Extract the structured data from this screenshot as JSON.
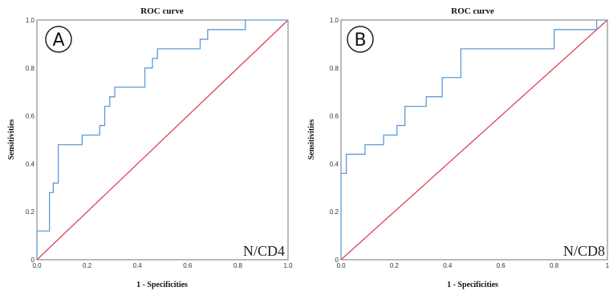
{
  "chart_data": [
    {
      "type": "line",
      "panel_letter": "A",
      "title": "ROC curve",
      "xlabel": "1 - Specificities",
      "ylabel": "Sensitivities",
      "corner_label": "N/CD4",
      "xlim": [
        0,
        1
      ],
      "ylim": [
        0,
        1
      ],
      "xticks": [
        "0.0",
        "0.2",
        "0.4",
        "0.6",
        "0.8",
        "1.0"
      ],
      "yticks": [
        "0",
        "0.2",
        "0.4",
        "0.6",
        "0.8",
        "1.0"
      ],
      "grid": false,
      "colors": {
        "roc": "#5b9bd5",
        "reference": "#e0405a"
      },
      "series": [
        {
          "x": [
            0,
            0,
            0.05,
            0.05,
            0.065,
            0.065,
            0.085,
            0.085,
            0.18,
            0.18,
            0.25,
            0.25,
            0.27,
            0.27,
            0.29,
            0.29,
            0.31,
            0.31,
            0.43,
            0.43,
            0.46,
            0.46,
            0.48,
            0.48,
            0.65,
            0.65,
            0.68,
            0.68,
            0.83,
            0.83,
            1.0
          ],
          "y": [
            0,
            0.12,
            0.12,
            0.28,
            0.28,
            0.32,
            0.32,
            0.48,
            0.48,
            0.52,
            0.52,
            0.56,
            0.56,
            0.64,
            0.64,
            0.68,
            0.68,
            0.72,
            0.72,
            0.8,
            0.8,
            0.84,
            0.84,
            0.88,
            0.88,
            0.92,
            0.92,
            0.96,
            0.96,
            1.0,
            1.0
          ]
        },
        {
          "x": [
            0,
            1
          ],
          "y": [
            0,
            1
          ]
        }
      ]
    },
    {
      "type": "line",
      "panel_letter": "B",
      "title": "ROC curve",
      "xlabel": "1 - Specificities",
      "ylabel": "Sensitivities",
      "corner_label": "N/CD8",
      "xlim": [
        0,
        1
      ],
      "ylim": [
        0,
        1
      ],
      "xticks": [
        "0.0",
        "0.2",
        "0.4",
        "0.6",
        "0.8",
        "1"
      ],
      "yticks": [
        "0",
        "0.2",
        "0.4",
        "0.6",
        "0.8",
        "1.0"
      ],
      "grid": false,
      "colors": {
        "roc": "#5b9bd5",
        "reference": "#e0405a"
      },
      "series": [
        {
          "x": [
            0,
            0,
            0.02,
            0.02,
            0.09,
            0.09,
            0.16,
            0.16,
            0.21,
            0.21,
            0.24,
            0.24,
            0.32,
            0.32,
            0.38,
            0.38,
            0.45,
            0.45,
            0.8,
            0.8,
            0.96,
            0.96,
            1.0
          ],
          "y": [
            0,
            0.36,
            0.36,
            0.44,
            0.44,
            0.48,
            0.48,
            0.52,
            0.52,
            0.56,
            0.56,
            0.64,
            0.64,
            0.68,
            0.68,
            0.76,
            0.76,
            0.88,
            0.88,
            0.96,
            0.96,
            1.0,
            1.0
          ]
        },
        {
          "x": [
            0,
            1
          ],
          "y": [
            0,
            1
          ]
        }
      ]
    }
  ]
}
